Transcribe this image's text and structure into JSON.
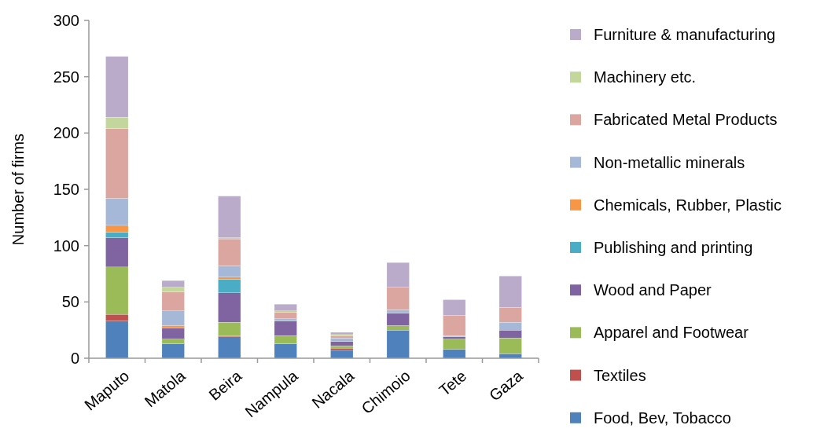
{
  "chart_data": {
    "type": "bar",
    "stacked": true,
    "ylabel": "Number of firms",
    "categories": [
      "Maputo",
      "Matola",
      "Beira",
      "Nampula",
      "Nacala",
      "Chimoio",
      "Tete",
      "Gaza"
    ],
    "ylim": [
      0,
      300
    ],
    "yticks": [
      0,
      50,
      100,
      150,
      200,
      250,
      300
    ],
    "legend": "right",
    "grid": false,
    "series": [
      {
        "name": "Food, Bev, Tobacco",
        "color": "#4f81bd",
        "values": [
          33,
          13,
          19,
          13,
          7,
          25,
          8,
          4
        ]
      },
      {
        "name": "Textiles",
        "color": "#c0504d",
        "values": [
          6,
          0,
          1,
          0,
          2,
          0,
          0,
          0
        ]
      },
      {
        "name": "Apparel and Footwear",
        "color": "#9bbb59",
        "values": [
          42,
          4,
          12,
          7,
          2,
          4,
          9,
          14
        ]
      },
      {
        "name": "Wood and Paper",
        "color": "#8064a2",
        "values": [
          26,
          10,
          26,
          13,
          4,
          11,
          2,
          7
        ]
      },
      {
        "name": "Publishing and printing",
        "color": "#4bacc6",
        "values": [
          5,
          0,
          12,
          0,
          0,
          0,
          0,
          0
        ]
      },
      {
        "name": "Chemicals, Rubber, Plastic",
        "color": "#f79646",
        "values": [
          6,
          2,
          2,
          0,
          0,
          0,
          0,
          0
        ]
      },
      {
        "name": "Non-metallic minerals",
        "color": "#a5b8d8",
        "values": [
          24,
          13,
          10,
          2,
          3,
          3,
          1,
          7
        ]
      },
      {
        "name": "Fabricated Metal Products",
        "color": "#dba5a0",
        "values": [
          62,
          17,
          24,
          6,
          2,
          20,
          18,
          13
        ]
      },
      {
        "name": "Machinery etc.",
        "color": "#c3d69b",
        "values": [
          10,
          4,
          1,
          1,
          1,
          0,
          0,
          0
        ]
      },
      {
        "name": "Furniture & manufacturing",
        "color": "#b9abc9",
        "values": [
          54,
          6,
          37,
          6,
          2,
          22,
          14,
          28
        ]
      }
    ]
  }
}
